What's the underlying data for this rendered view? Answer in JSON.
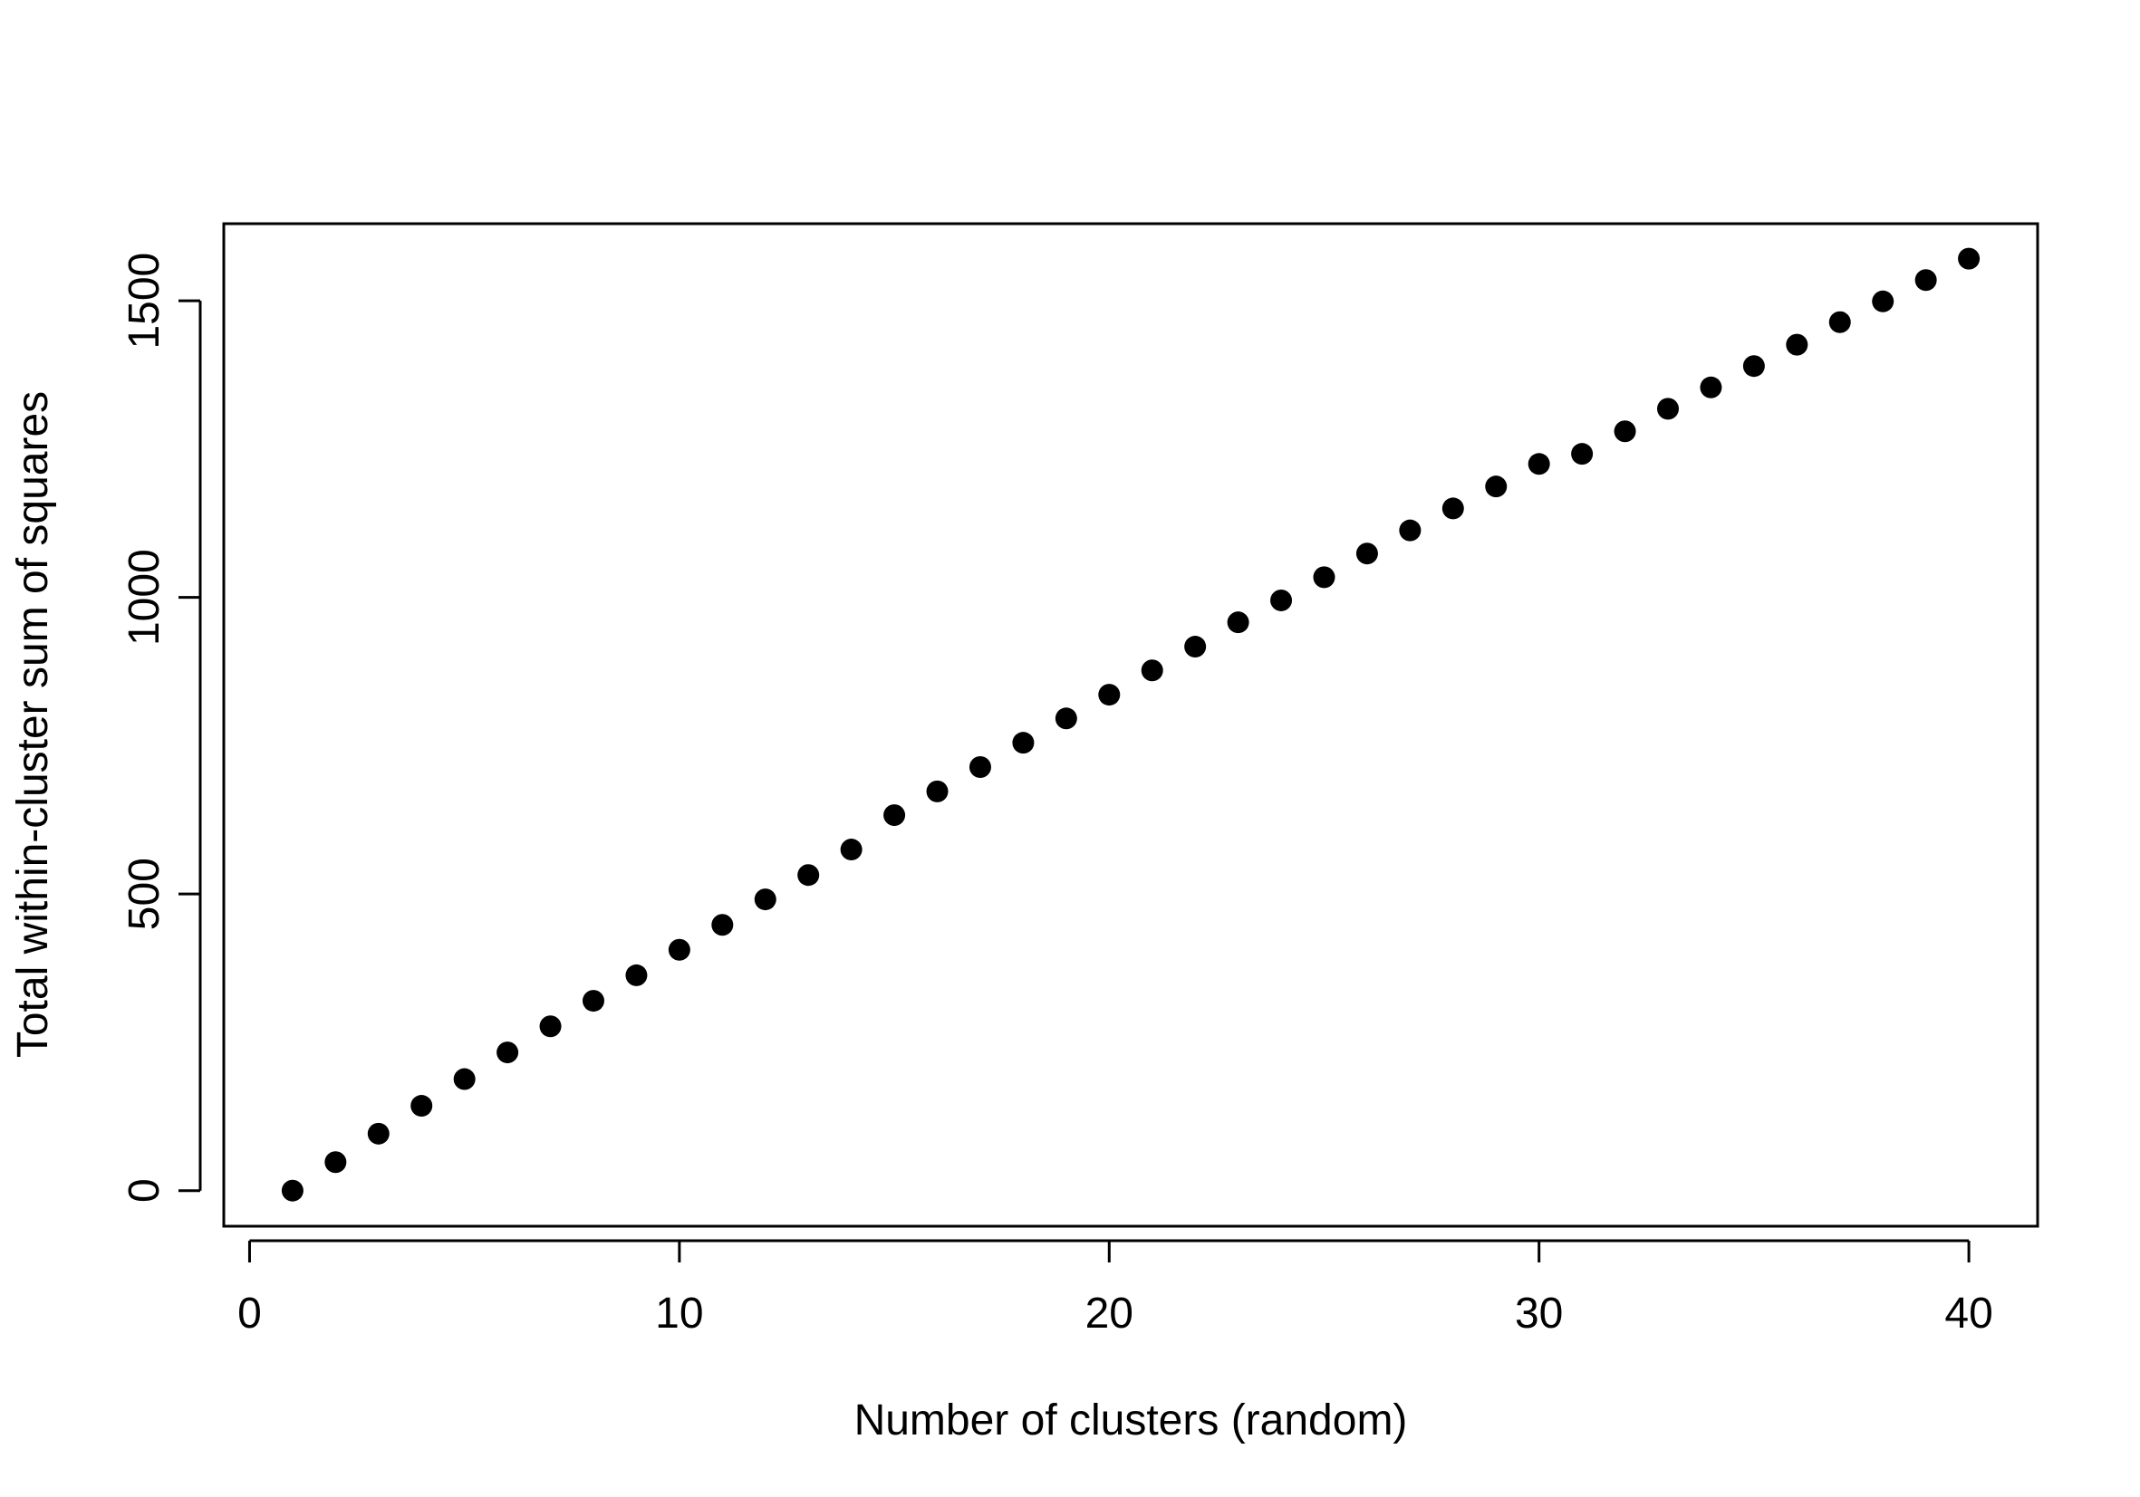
{
  "chart_data": {
    "type": "scatter",
    "title": "",
    "xlabel": "Number of clusters (random)",
    "ylabel": "Total within-cluster sum of squares",
    "xlim": [
      -0.6,
      41.6
    ],
    "ylim": [
      -60,
      1630
    ],
    "xticks": [
      0,
      10,
      20,
      30,
      40
    ],
    "xtick_labels": [
      "0",
      "10",
      "20",
      "30",
      "40"
    ],
    "yticks": [
      0,
      500,
      1000,
      1500
    ],
    "ytick_labels": [
      "0",
      "500",
      "1000",
      "1500"
    ],
    "grid": false,
    "legend": "none",
    "point_color": "#000000",
    "series": [
      {
        "x": [
          1,
          2,
          3,
          4,
          5,
          6,
          7,
          8,
          9,
          10,
          11,
          12,
          13,
          14,
          15,
          16,
          17,
          18,
          19,
          20,
          21,
          22,
          23,
          24,
          25,
          26,
          27,
          28,
          29,
          30,
          31,
          32,
          33,
          34,
          35,
          36,
          37,
          38,
          39,
          40
        ],
        "y": [
          0,
          48,
          96,
          143,
          188,
          233,
          277,
          320,
          363,
          406,
          448,
          491,
          532,
          575,
          633,
          673,
          714,
          755,
          796,
          836,
          877,
          917,
          958,
          995,
          1034,
          1074,
          1113,
          1150,
          1187,
          1225,
          1242,
          1280,
          1318,
          1354,
          1390,
          1426,
          1464,
          1499,
          1535,
          1571
        ]
      }
    ]
  }
}
